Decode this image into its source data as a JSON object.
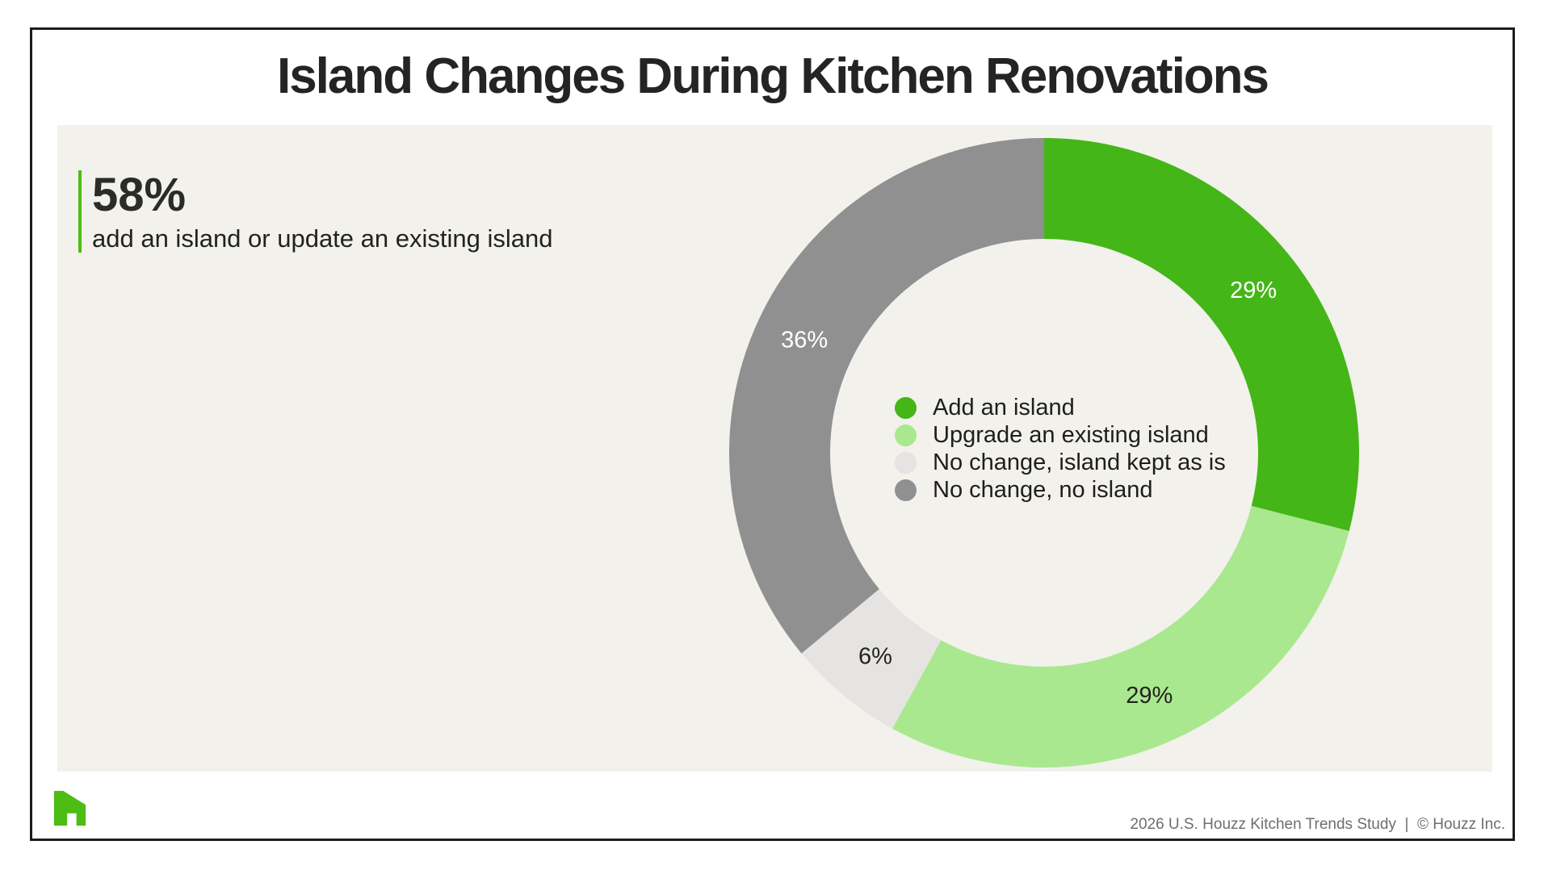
{
  "page": {
    "title": "Island Changes During Kitchen Renovations",
    "footer": "2026 U.S. Houzz Kitchen Trends Study  |  © Houzz Inc."
  },
  "stat": {
    "value": "58%",
    "description": "add an island or update an existing island"
  },
  "chart_data": {
    "type": "pie",
    "donut": true,
    "start_angle_deg": 0,
    "direction": "clockwise",
    "title": "Island Changes During Kitchen Renovations",
    "legend_position": "center",
    "segments": [
      {
        "label": "Add an island",
        "value": 29,
        "value_label": "29%",
        "color": "#44b617",
        "label_text_color": "#ffffff"
      },
      {
        "label": "Upgrade an existing island",
        "value": 29,
        "value_label": "29%",
        "color": "#a9e88f",
        "label_text_color": "#222222"
      },
      {
        "label": "No change, island kept as is",
        "value": 6,
        "value_label": "6%",
        "color": "#e5e4e2",
        "label_text_color": "#222222"
      },
      {
        "label": "No change, no island",
        "value": 36,
        "value_label": "36%",
        "color": "#909090",
        "label_text_color": "#ffffff"
      }
    ]
  },
  "colors": {
    "brand_green": "#4dbc15",
    "panel_background": "#f2f1ec",
    "frame_border": "#1c1c1c",
    "title_text": "#242424",
    "footer_text": "#6e6e6e"
  }
}
